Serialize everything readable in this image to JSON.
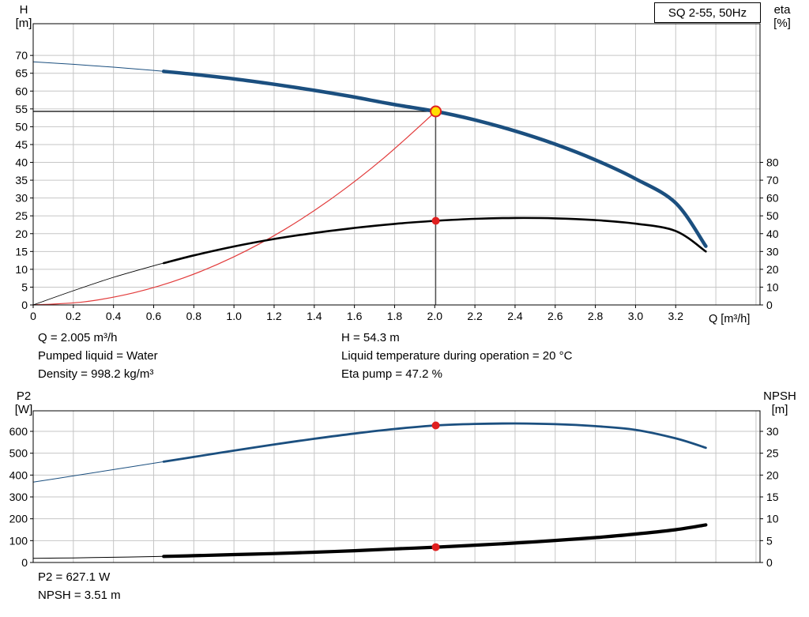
{
  "title_box": {
    "label": "SQ 2-55, 50Hz"
  },
  "axes": {
    "top_left_line1": "H",
    "top_left_line2": "[m]",
    "top_right_line1": "eta",
    "top_right_line2": "[%]",
    "x_label": "Q [m³/h]",
    "bottom_left_line1": "P2",
    "bottom_left_line2": "[W]",
    "bottom_right_line1": "NPSH",
    "bottom_right_line2": "[m]"
  },
  "info_top": {
    "col1": [
      "Q = 2.005 m³/h",
      "Pumped liquid = Water",
      "Density = 998.2 kg/m³"
    ],
    "col2": [
      "H = 54.3 m",
      "Liquid temperature during operation = 20 °C",
      "Eta pump = 47.2 %"
    ]
  },
  "info_bottom": [
    "P2 = 627.1 W",
    "NPSH = 3.51 m"
  ],
  "colors": {
    "curve_blue": "#1b4f7f",
    "curve_black": "#000000",
    "system_curve_red": "#e23b3b",
    "marker_red": "#e02020",
    "marker_yellow": "#ffdf00",
    "grid": "#c6c6c6"
  },
  "chart_data": [
    {
      "type": "line",
      "title": "SQ 2-55, 50Hz",
      "x_label": "Q [m³/h]",
      "x_range": [
        0,
        3.62
      ],
      "x_grid_step": 0.2,
      "x_ticks": [
        0,
        0.2,
        0.4,
        0.6,
        0.8,
        1.0,
        1.2,
        1.4,
        1.6,
        1.8,
        2.0,
        2.2,
        2.4,
        2.6,
        2.8,
        3.0,
        3.2
      ],
      "left_axis": {
        "label": "H [m]",
        "range": [
          0,
          78.9
        ],
        "ticks": [
          0,
          5,
          10,
          15,
          20,
          25,
          30,
          35,
          40,
          45,
          50,
          55,
          60,
          65,
          70
        ]
      },
      "right_axis": {
        "label": "eta [%]",
        "range": [
          0,
          157.8
        ],
        "ticks": [
          0,
          10,
          20,
          30,
          40,
          50,
          60,
          70,
          80
        ]
      },
      "series": [
        {
          "name": "system-curve",
          "axis": "left",
          "color": "#e23b3b",
          "thick": 1.2,
          "thin": 1.2,
          "thin_until": 0,
          "x": [
            0,
            0.25,
            0.5,
            0.75,
            1.0,
            1.25,
            1.5,
            1.75,
            2.005
          ],
          "y": [
            0,
            0.85,
            3.4,
            7.6,
            13.5,
            21.1,
            30.4,
            41.4,
            54.3
          ]
        },
        {
          "name": "efficiency-curve",
          "axis": "right",
          "color": "#000000",
          "thick": 2.6,
          "thin": 0.9,
          "thin_until": 0.65,
          "x": [
            0,
            0.2,
            0.4,
            0.6,
            0.8,
            1.0,
            1.2,
            1.4,
            1.6,
            1.8,
            2.005,
            2.2,
            2.4,
            2.6,
            2.8,
            3.0,
            3.2,
            3.35
          ],
          "y": [
            0,
            8.0,
            15.5,
            22.0,
            27.8,
            32.8,
            37.0,
            40.4,
            43.2,
            45.5,
            47.2,
            48.3,
            48.8,
            48.6,
            47.6,
            45.6,
            41.5,
            30.0
          ]
        },
        {
          "name": "head-curve",
          "axis": "left",
          "color": "#1b4f7f",
          "thick": 4.5,
          "thin": 1,
          "thin_until": 0.65,
          "x": [
            0,
            0.2,
            0.4,
            0.6,
            0.8,
            1.0,
            1.2,
            1.4,
            1.6,
            1.8,
            2.005,
            2.2,
            2.4,
            2.6,
            2.8,
            3.0,
            3.2,
            3.35
          ],
          "y": [
            68.2,
            67.5,
            66.7,
            65.8,
            64.7,
            63.4,
            61.9,
            60.2,
            58.3,
            56.2,
            54.3,
            51.9,
            48.8,
            45.1,
            40.7,
            35.4,
            28.6,
            16.5
          ]
        }
      ],
      "crosshair": {
        "q": 2.005,
        "h": 54.3
      },
      "markers": [
        {
          "name": "duty-point-marker",
          "axis": "left",
          "x": 2.005,
          "y": 54.3,
          "r": 6.5,
          "fill": "#ffdf00",
          "stroke": "#e02020",
          "stroke_width": 2
        },
        {
          "name": "eta-point-marker",
          "axis": "right",
          "x": 2.005,
          "y": 47.2,
          "r": 5,
          "fill": "#e02020",
          "stroke": "none",
          "stroke_width": 0
        }
      ]
    },
    {
      "type": "line",
      "title": "",
      "x_label": "",
      "x_range": [
        0,
        3.62
      ],
      "x_grid_step": 0.2,
      "x_ticks": [],
      "left_axis": {
        "label": "P2 [W]",
        "range": [
          0,
          694
        ],
        "ticks": [
          0,
          100,
          200,
          300,
          400,
          500,
          600
        ]
      },
      "right_axis": {
        "label": "NPSH [m]",
        "range": [
          0,
          34.7
        ],
        "ticks": [
          0,
          5,
          10,
          15,
          20,
          25,
          30
        ]
      },
      "series": [
        {
          "name": "p2-curve",
          "axis": "left",
          "color": "#1b4f7f",
          "thick": 2.8,
          "thin": 1,
          "thin_until": 0.65,
          "x": [
            0,
            0.2,
            0.4,
            0.6,
            0.8,
            1.0,
            1.2,
            1.4,
            1.6,
            1.8,
            2.005,
            2.2,
            2.4,
            2.6,
            2.8,
            3.0,
            3.2,
            3.35
          ],
          "y": [
            368,
            396,
            425,
            454,
            483,
            512,
            540,
            566,
            590,
            611,
            627.1,
            634,
            636,
            633,
            624,
            607,
            568,
            525
          ]
        },
        {
          "name": "npsh-curve",
          "axis": "right",
          "color": "#000000",
          "thick": 4.2,
          "thin": 1,
          "thin_until": 0.65,
          "x": [
            0,
            0.2,
            0.4,
            0.6,
            0.8,
            1.0,
            1.2,
            1.4,
            1.6,
            1.8,
            2.005,
            2.2,
            2.4,
            2.6,
            2.8,
            3.0,
            3.2,
            3.35
          ],
          "y": [
            0.95,
            1.05,
            1.2,
            1.35,
            1.55,
            1.8,
            2.05,
            2.35,
            2.7,
            3.1,
            3.51,
            3.95,
            4.45,
            5.05,
            5.7,
            6.5,
            7.5,
            8.6
          ]
        }
      ],
      "markers": [
        {
          "name": "p2-point-marker",
          "axis": "left",
          "x": 2.005,
          "y": 627.1,
          "r": 5,
          "fill": "#e02020",
          "stroke": "none",
          "stroke_width": 0
        },
        {
          "name": "npsh-point-marker",
          "axis": "right",
          "x": 2.005,
          "y": 3.51,
          "r": 5,
          "fill": "#e02020",
          "stroke": "none",
          "stroke_width": 0
        }
      ]
    }
  ]
}
